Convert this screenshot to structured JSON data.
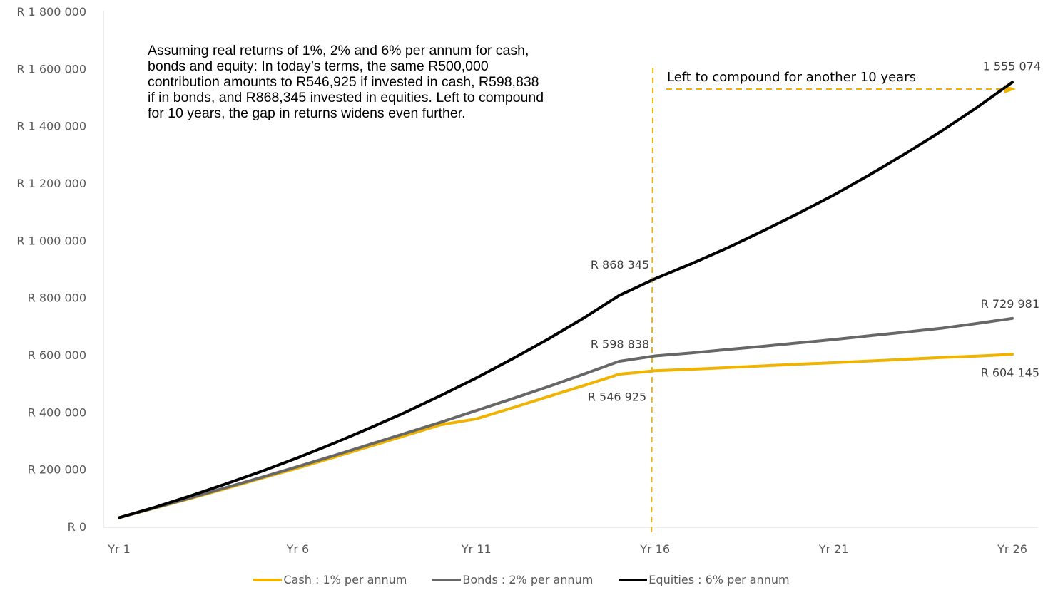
{
  "chart_data": {
    "type": "line",
    "categories": [
      "Yr 1",
      "Yr 2",
      "Yr 3",
      "Yr 4",
      "Yr 5",
      "Yr 6",
      "Yr 7",
      "Yr 8",
      "Yr 9",
      "Yr 10",
      "Yr 11",
      "Yr 12",
      "Yr 13",
      "Yr 14",
      "Yr 15",
      "Yr 16",
      "Yr 17",
      "Yr 18",
      "Yr 19",
      "Yr 20",
      "Yr 21",
      "Yr 22",
      "Yr 23",
      "Yr 24",
      "Yr 25",
      "Yr 26"
    ],
    "x_tick_labels": [
      "Yr 1",
      "Yr 6",
      "Yr 11",
      "Yr 16",
      "Yr 21",
      "Yr 26"
    ],
    "y_tick_labels": [
      "R 0",
      "R 200 000",
      "R 400 000",
      "R 600 000",
      "R 800 000",
      "R 1 000 000",
      "R 1 200 000",
      "R 1 400 000",
      "R 1 600 000",
      "R 1 800 000"
    ],
    "ylim": [
      0,
      1800000
    ],
    "y_tick_step": 200000,
    "grid": false,
    "legend_position": "bottom",
    "series": [
      {
        "name": "Cash : 1% per annum",
        "color": "#F0B400",
        "values": [
          33500,
          67000,
          101000,
          136000,
          172000,
          207000,
          244000,
          282000,
          320000,
          358000,
          379000,
          417000,
          456000,
          495000,
          535000,
          546925,
          552000,
          558000,
          564000,
          570000,
          575000,
          581000,
          587000,
          593000,
          598000,
          604145
        ]
      },
      {
        "name": "Bonds : 2% per annum",
        "color": "#676767",
        "values": [
          33500,
          68000,
          103000,
          139000,
          175000,
          212000,
          250000,
          289000,
          328000,
          367000,
          408000,
          449000,
          491000,
          535000,
          580000,
          598838,
          609000,
          621000,
          632000,
          644000,
          656000,
          669000,
          682000,
          695000,
          712000,
          729981
        ]
      },
      {
        "name": "Equities : 6% per annum",
        "color": "#000000",
        "values": [
          33500,
          70000,
          110000,
          152000,
          196000,
          243000,
          293000,
          346000,
          401000,
          460000,
          522000,
          588000,
          657000,
          731000,
          810000,
          868345,
          920000,
          975000,
          1034000,
          1096000,
          1161000,
          1231000,
          1305000,
          1383000,
          1466000,
          1555074
        ]
      }
    ],
    "data_labels": [
      {
        "series": 0,
        "index": 15,
        "text": "R 546 925"
      },
      {
        "series": 1,
        "index": 15,
        "text": "R 598 838"
      },
      {
        "series": 2,
        "index": 15,
        "text": "R 868 345"
      },
      {
        "series": 0,
        "index": 25,
        "text": "R 604 145"
      },
      {
        "series": 1,
        "index": 25,
        "text": "R 729 981"
      },
      {
        "series": 2,
        "index": 25,
        "text": "1 555 074"
      }
    ],
    "annotation": {
      "text": "Assuming real returns of 1%, 2% and 6% per annum for cash, bonds and equity: In today’s terms, the same R500,000 contribution amounts to R546,925 if invested in cash, R598,838 if in bonds, and R868,345 invested in equities. Left to compound for 10 years, the gap in returns widens even further.",
      "callout": "Left to compound for another 10 years",
      "marker_color": "#F0B400"
    }
  }
}
